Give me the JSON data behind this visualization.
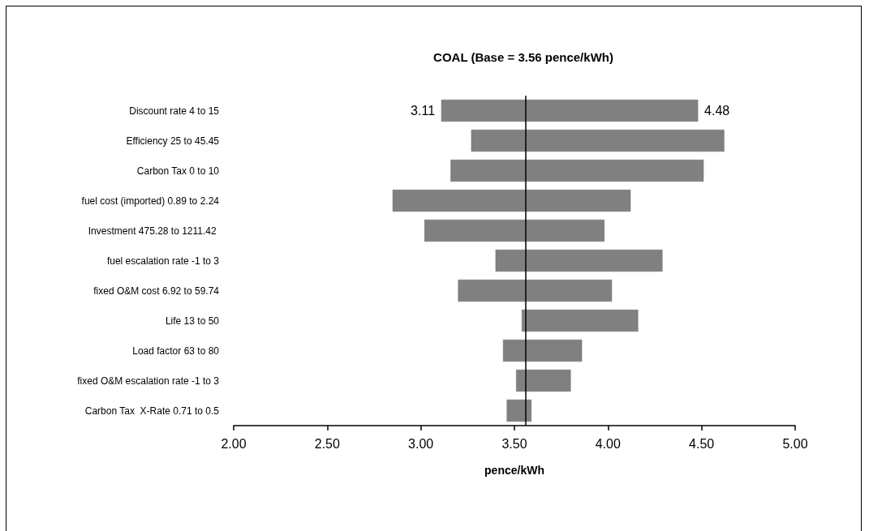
{
  "chart_data": {
    "type": "bar",
    "orientation": "horizontal",
    "title": "COAL (Base = 3.56 pence/kWh)",
    "xlabel": "pence/kWh",
    "categories": [
      "Discount rate 4 to 15",
      "Efficiency 25 to 45.45",
      "Carbon Tax 0 to 10",
      "fuel cost (imported) 0.89 to 2.24",
      "Investment 475.28 to 1211.42 ",
      "fuel escalation rate -1 to 3",
      "fixed O&M cost 6.92 to 59.74",
      "Life 13 to 50",
      "Load factor 63 to 80",
      "fixed O&M escalation rate -1 to 3",
      "Carbon Tax  X-Rate 0.71 to 0.5"
    ],
    "base": [
      3.11,
      3.27,
      3.16,
      2.85,
      3.02,
      3.4,
      3.2,
      3.54,
      3.44,
      3.51,
      3.46
    ],
    "values": [
      1.37,
      1.35,
      1.35,
      1.27,
      0.96,
      0.89,
      0.82,
      0.62,
      0.42,
      0.29,
      0.13
    ],
    "color": "#808080",
    "xlim": [
      2,
      5
    ],
    "xticks": [
      {
        "value": 2,
        "label": "2.00"
      },
      {
        "value": 2.5,
        "label": "2.50"
      },
      {
        "value": 3,
        "label": "3.00"
      },
      {
        "value": 3.5,
        "label": "3.50"
      },
      {
        "value": 4,
        "label": "4.00"
      },
      {
        "value": 4.5,
        "label": "4.50"
      },
      {
        "value": 5,
        "label": "5.00"
      }
    ],
    "ref_lines": [
      {
        "axis": "x",
        "value": 3.56,
        "color": "#000000"
      }
    ],
    "annotations": [
      {
        "text": "3.11",
        "x": 3.11,
        "y": "Discount rate 4 to 15"
      },
      {
        "text": "4.48",
        "x": 4.48,
        "y": "Discount rate 4 to 15"
      }
    ],
    "grid": false
  }
}
